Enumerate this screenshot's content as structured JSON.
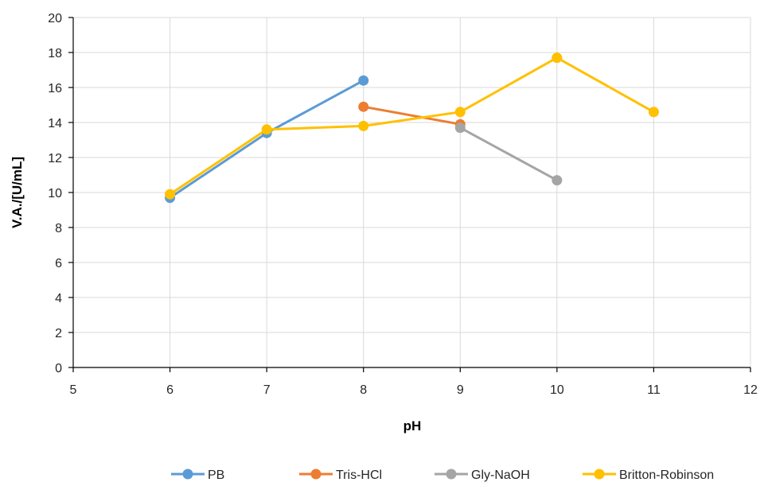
{
  "chart_data": {
    "type": "line",
    "title": "",
    "xlabel": "pH",
    "ylabel": "V.A./[U/mL]",
    "xlim": [
      5,
      12
    ],
    "ylim": [
      0,
      20
    ],
    "xticks": [
      5,
      6,
      7,
      8,
      9,
      10,
      11,
      12
    ],
    "yticks": [
      0,
      2,
      4,
      6,
      8,
      10,
      12,
      14,
      16,
      18,
      20
    ],
    "grid": true,
    "legend_position": "bottom",
    "series": [
      {
        "name": "PB",
        "color": "#5B9BD5",
        "x": [
          6,
          7,
          8
        ],
        "y": [
          9.7,
          13.4,
          16.4
        ]
      },
      {
        "name": "Tris-HCl",
        "color": "#ED7D31",
        "x": [
          8,
          9
        ],
        "y": [
          14.9,
          13.9
        ]
      },
      {
        "name": "Gly-NaOH",
        "color": "#A5A5A5",
        "x": [
          9,
          10
        ],
        "y": [
          13.7,
          10.7
        ]
      },
      {
        "name": "Britton-Robinson",
        "color": "#FFC000",
        "x": [
          6,
          7,
          8,
          9,
          10,
          11
        ],
        "y": [
          9.9,
          13.6,
          13.8,
          14.6,
          17.7,
          14.6
        ]
      }
    ]
  }
}
